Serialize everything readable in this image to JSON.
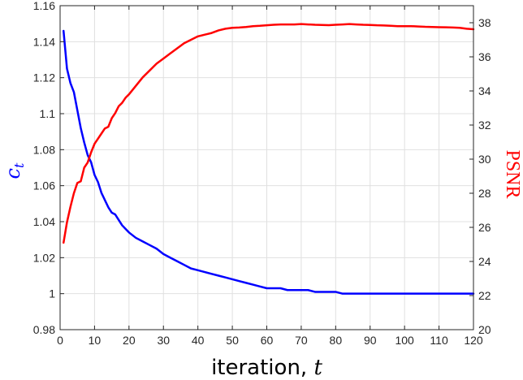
{
  "chart_data": {
    "type": "line",
    "xlabel": {
      "text": "iteration, ",
      "var": "t"
    },
    "ylabel_left": {
      "base": "c",
      "sub": "t"
    },
    "ylabel_right": "PSNR",
    "xlim": [
      0,
      120
    ],
    "ylim_left": [
      0.98,
      1.16
    ],
    "ylim_right": [
      20,
      39
    ],
    "x_ticks": [
      0,
      10,
      20,
      30,
      40,
      50,
      60,
      70,
      80,
      90,
      100,
      110,
      120
    ],
    "y_ticks_left": [
      0.98,
      1,
      1.02,
      1.04,
      1.06,
      1.08,
      1.1,
      1.12,
      1.14,
      1.16
    ],
    "y_ticks_right": [
      20,
      22,
      24,
      26,
      28,
      30,
      32,
      34,
      36,
      38
    ],
    "grid": true,
    "colors": {
      "left": "#0000ff",
      "right": "#ff0000",
      "grid": "#e0e0e0",
      "axis": "#262626"
    },
    "series": [
      {
        "axis": "left",
        "color": "#0000ff",
        "x": [
          1,
          2,
          3,
          4,
          5,
          6,
          7,
          8,
          9,
          10,
          11,
          12,
          13,
          14,
          15,
          16,
          17,
          18,
          19,
          20,
          22,
          24,
          26,
          28,
          30,
          32,
          34,
          36,
          38,
          40,
          42,
          44,
          46,
          48,
          50,
          52,
          54,
          56,
          58,
          60,
          62,
          64,
          66,
          68,
          70,
          72,
          74,
          76,
          78,
          80,
          82,
          84,
          86,
          88,
          90,
          92,
          94,
          96,
          98,
          100,
          102,
          104,
          106,
          108,
          110,
          112,
          114,
          116,
          118,
          120
        ],
        "values": [
          1.146,
          1.125,
          1.117,
          1.112,
          1.102,
          1.092,
          1.084,
          1.077,
          1.073,
          1.066,
          1.062,
          1.056,
          1.052,
          1.048,
          1.045,
          1.044,
          1.041,
          1.038,
          1.036,
          1.034,
          1.031,
          1.029,
          1.027,
          1.025,
          1.022,
          1.02,
          1.018,
          1.016,
          1.014,
          1.013,
          1.012,
          1.011,
          1.01,
          1.009,
          1.008,
          1.007,
          1.006,
          1.005,
          1.004,
          1.003,
          1.003,
          1.003,
          1.002,
          1.002,
          1.002,
          1.002,
          1.001,
          1.001,
          1.001,
          1.001,
          1.0,
          1.0,
          1.0,
          1.0,
          1.0,
          1.0,
          1.0,
          1.0,
          1.0,
          1.0,
          1.0,
          1.0,
          1.0,
          1.0,
          1.0,
          1.0,
          1.0,
          1.0,
          1.0,
          1.0
        ]
      },
      {
        "axis": "right",
        "color": "#ff0000",
        "x": [
          1,
          2,
          3,
          4,
          5,
          6,
          7,
          8,
          9,
          10,
          11,
          12,
          13,
          14,
          15,
          16,
          17,
          18,
          19,
          20,
          22,
          24,
          26,
          28,
          30,
          32,
          34,
          36,
          38,
          40,
          42,
          44,
          46,
          48,
          50,
          52,
          54,
          56,
          58,
          60,
          62,
          64,
          66,
          68,
          70,
          72,
          74,
          76,
          78,
          80,
          82,
          84,
          86,
          88,
          90,
          92,
          94,
          96,
          98,
          100,
          102,
          104,
          106,
          108,
          110,
          112,
          114,
          116,
          118,
          120
        ],
        "values": [
          25.1,
          26.3,
          27.2,
          28.0,
          28.6,
          28.7,
          29.5,
          29.8,
          30.4,
          30.9,
          31.2,
          31.5,
          31.8,
          31.9,
          32.4,
          32.7,
          33.1,
          33.3,
          33.6,
          33.8,
          34.3,
          34.8,
          35.2,
          35.6,
          35.9,
          36.2,
          36.5,
          36.8,
          37.0,
          37.2,
          37.3,
          37.4,
          37.55,
          37.65,
          37.7,
          37.72,
          37.75,
          37.8,
          37.82,
          37.85,
          37.88,
          37.9,
          37.9,
          37.9,
          37.92,
          37.9,
          37.88,
          37.87,
          37.86,
          37.88,
          37.9,
          37.92,
          37.9,
          37.88,
          37.87,
          37.85,
          37.84,
          37.82,
          37.8,
          37.8,
          37.8,
          37.78,
          37.76,
          37.75,
          37.74,
          37.73,
          37.72,
          37.7,
          37.65,
          37.62
        ]
      }
    ]
  }
}
